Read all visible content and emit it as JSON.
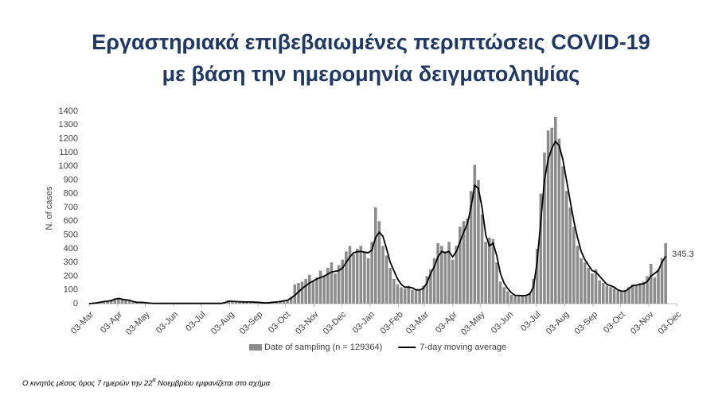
{
  "chart_data": {
    "type": "bar",
    "title": [
      "Εργαστηριακά επιβεβαιωμένες περιπτώσεις COVID-19",
      "με βάση την ημερομηνία δειγματοληψίας"
    ],
    "ylabel": "N. of cases",
    "x": [
      0,
      4,
      8,
      12,
      16,
      20,
      24,
      28,
      32,
      36,
      40,
      44,
      48,
      52,
      56,
      60,
      64,
      68,
      72,
      76,
      80,
      84,
      88,
      92,
      96,
      100,
      104,
      108,
      112,
      116,
      120,
      124,
      128,
      132,
      136,
      140,
      144,
      148,
      152,
      156,
      160,
      164,
      168,
      172,
      176,
      180,
      184,
      188,
      192,
      196,
      200,
      204,
      208,
      212,
      216,
      220,
      224,
      228,
      232,
      236,
      240,
      244,
      248,
      252,
      256,
      260,
      264,
      268,
      272,
      276,
      280,
      284,
      288,
      292,
      296,
      300,
      304,
      308,
      312,
      316,
      320,
      324,
      328,
      332,
      336,
      340,
      344,
      348,
      352,
      356,
      360,
      364,
      368,
      372,
      376,
      380,
      384,
      388,
      392,
      396,
      400,
      404,
      408,
      412,
      416,
      420,
      424,
      428,
      432,
      436,
      440,
      444,
      448,
      452,
      456,
      460,
      464,
      468,
      472,
      476,
      480,
      484,
      488,
      492,
      496,
      500,
      504,
      508,
      512,
      516,
      520,
      524,
      528,
      532,
      536,
      540,
      544,
      548,
      552,
      556,
      560,
      564,
      568,
      572,
      576,
      580,
      584,
      588,
      592,
      596,
      600,
      604,
      608,
      612,
      616,
      620,
      624,
      628
    ],
    "series": [
      {
        "name": "Date of sampling (n = 129364)",
        "type": "bar",
        "color": "#8c8c8c",
        "values": [
          2,
          5,
          8,
          12,
          18,
          20,
          28,
          38,
          42,
          30,
          30,
          22,
          14,
          10,
          8,
          7,
          4,
          3,
          2,
          2,
          3,
          2,
          1,
          2,
          2,
          3,
          2,
          2,
          1,
          2,
          2,
          3,
          2,
          2,
          2,
          1,
          3,
          12,
          24,
          18,
          16,
          15,
          14,
          12,
          14,
          10,
          9,
          6,
          5,
          8,
          12,
          14,
          18,
          24,
          30,
          50,
          140,
          150,
          160,
          180,
          210,
          170,
          190,
          240,
          200,
          260,
          300,
          220,
          280,
          320,
          380,
          420,
          360,
          400,
          420,
          380,
          330,
          450,
          700,
          600,
          420,
          350,
          260,
          180,
          140,
          120,
          110,
          130,
          100,
          95,
          105,
          130,
          200,
          250,
          330,
          440,
          420,
          380,
          450,
          320,
          420,
          560,
          600,
          620,
          820,
          1010,
          900,
          650,
          450,
          480,
          470,
          300,
          160,
          120,
          90,
          65,
          55,
          55,
          60,
          58,
          80,
          180,
          400,
          800,
          1100,
          1260,
          1280,
          1360,
          1200,
          1000,
          820,
          700,
          560,
          420,
          330,
          300,
          260,
          220,
          250,
          170,
          150,
          130,
          120,
          110,
          95,
          85,
          100,
          120,
          140,
          130,
          150,
          160,
          200,
          290,
          190,
          250,
          330,
          440
        ]
      },
      {
        "name": "7-day moving average",
        "type": "line",
        "color": "#000000",
        "values": [
          0,
          3,
          5,
          10,
          15,
          18,
          22,
          32,
          38,
          32,
          28,
          25,
          15,
          10,
          9,
          8,
          5,
          3,
          2,
          2,
          2,
          2,
          2,
          2,
          2,
          2,
          2,
          2,
          2,
          2,
          2,
          2,
          2,
          2,
          2,
          2,
          2,
          8,
          18,
          17,
          15,
          14,
          13,
          12,
          12,
          11,
          10,
          7,
          5,
          7,
          10,
          12,
          15,
          20,
          25,
          40,
          60,
          85,
          110,
          130,
          150,
          165,
          180,
          190,
          200,
          215,
          230,
          235,
          240,
          260,
          300,
          340,
          370,
          378,
          380,
          375,
          370,
          390,
          480,
          520,
          490,
          400,
          300,
          240,
          180,
          140,
          120,
          120,
          115,
          100,
          100,
          110,
          150,
          220,
          270,
          340,
          380,
          370,
          380,
          340,
          380,
          450,
          520,
          580,
          700,
          860,
          840,
          700,
          500,
          420,
          440,
          350,
          220,
          150,
          110,
          80,
          60,
          60,
          58,
          60,
          70,
          120,
          300,
          600,
          900,
          1050,
          1130,
          1180,
          1150,
          1050,
          900,
          750,
          600,
          480,
          380,
          320,
          280,
          240,
          230,
          200,
          170,
          140,
          130,
          120,
          100,
          90,
          90,
          110,
          130,
          135,
          140,
          145,
          160,
          200,
          220,
          240,
          300,
          345.3
        ]
      }
    ],
    "annotations": [
      {
        "x": 628,
        "y": 345.3,
        "text": "345.3"
      }
    ],
    "xlim": [
      0,
      640
    ],
    "xticks": [
      {
        "value": 0,
        "label": "03-Mar"
      },
      {
        "value": 31,
        "label": "03-Apr"
      },
      {
        "value": 61,
        "label": "03-May"
      },
      {
        "value": 92,
        "label": "03-Jun"
      },
      {
        "value": 122,
        "label": "03-Jul"
      },
      {
        "value": 153,
        "label": "03-Aug"
      },
      {
        "value": 184,
        "label": "03-Sep"
      },
      {
        "value": 214,
        "label": "03-Oct"
      },
      {
        "value": 245,
        "label": "03-Nov"
      },
      {
        "value": 275,
        "label": "03-Dec"
      },
      {
        "value": 306,
        "label": "03-Jan"
      },
      {
        "value": 337,
        "label": "03-Feb"
      },
      {
        "value": 365,
        "label": "03-Mar"
      },
      {
        "value": 396,
        "label": "03-Apr"
      },
      {
        "value": 426,
        "label": "03-May"
      },
      {
        "value": 457,
        "label": "03-Jun"
      },
      {
        "value": 487,
        "label": "03-Jul"
      },
      {
        "value": 518,
        "label": "03-Aug"
      },
      {
        "value": 549,
        "label": "03-Sep"
      },
      {
        "value": 579,
        "label": "03-Oct"
      },
      {
        "value": 610,
        "label": "03-Nov"
      },
      {
        "value": 640,
        "label": "03-Dec"
      }
    ],
    "ylim": [
      0,
      1400
    ],
    "yticks": [
      0,
      100,
      200,
      300,
      400,
      500,
      600,
      700,
      800,
      900,
      1000,
      1100,
      1200,
      1300,
      1400
    ],
    "grid": false,
    "legend": "bottom"
  },
  "footnote": [
    "Ο κινητός μέσος όρος 7 ημερών την 22",
    "α",
    " Νοεμβρίου εμφανίζεται στο σχήμα"
  ]
}
